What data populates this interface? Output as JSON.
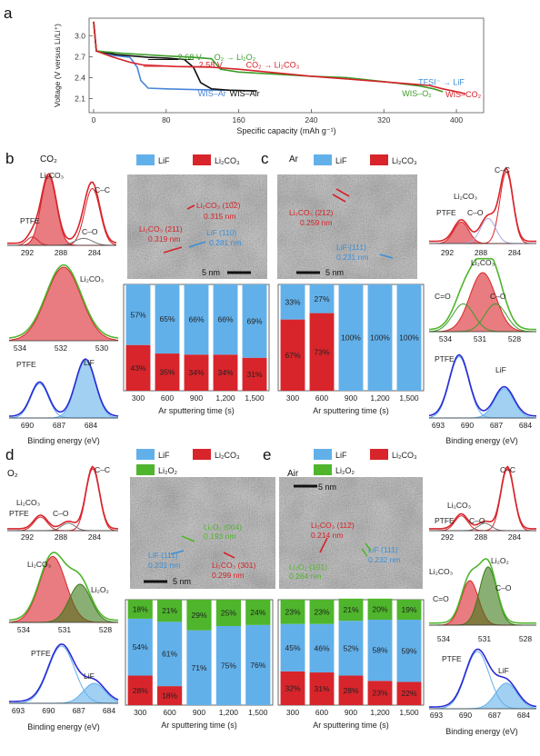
{
  "panel_labels": [
    "a",
    "b",
    "c",
    "d",
    "e"
  ],
  "colors": {
    "lif": "#62b0ea",
    "li2co3": "#d8252b",
    "li2o2": "#4fb52c",
    "curve_red": "#d62128",
    "curve_green": "#3c9c28",
    "curve_black": "#111111",
    "curve_blue": "#4a86d8",
    "ann_blue": "#3a8fd8"
  },
  "chart_data": [
    {
      "id": "a",
      "type": "line",
      "xlabel": "Specific capacity (mAh g⁻¹)",
      "ylabel": "Voltage (V versus Li/Li⁺)",
      "xlim": [
        -5,
        430
      ],
      "ylim": [
        1.9,
        3.25
      ],
      "xticks": [
        0,
        80,
        160,
        240,
        320,
        400
      ],
      "yticks": [
        2.1,
        2.4,
        2.7,
        3.0
      ],
      "series": [
        {
          "name": "WIS–Ar",
          "color": "#4a86d8",
          "points": [
            [
              0,
              3.2
            ],
            [
              3,
              2.78
            ],
            [
              20,
              2.72
            ],
            [
              40,
              2.69
            ],
            [
              48,
              2.55
            ],
            [
              52,
              2.36
            ],
            [
              60,
              2.25
            ],
            [
              80,
              2.24
            ],
            [
              110,
              2.23
            ],
            [
              145,
              2.22
            ]
          ]
        },
        {
          "name": "WIS–Air",
          "color": "#111111",
          "points": [
            [
              0,
              3.2
            ],
            [
              3,
              2.78
            ],
            [
              25,
              2.73
            ],
            [
              60,
              2.69
            ],
            [
              80,
              2.68
            ],
            [
              100,
              2.66
            ],
            [
              110,
              2.55
            ],
            [
              118,
              2.33
            ],
            [
              130,
              2.24
            ],
            [
              150,
              2.22
            ],
            [
              180,
              2.21
            ]
          ]
        },
        {
          "name": "WIS–O₂",
          "color": "#3c9c28",
          "points": [
            [
              0,
              3.2
            ],
            [
              3,
              2.78
            ],
            [
              30,
              2.75
            ],
            [
              80,
              2.71
            ],
            [
              110,
              2.69
            ],
            [
              130,
              2.67
            ],
            [
              140,
              2.52
            ],
            [
              160,
              2.48
            ],
            [
              200,
              2.45
            ],
            [
              240,
              2.42
            ],
            [
              280,
              2.4
            ],
            [
              330,
              2.33
            ],
            [
              360,
              2.28
            ],
            [
              375,
              2.24
            ],
            [
              385,
              2.2
            ]
          ]
        },
        {
          "name": "WIS–CO₂",
          "color": "#d62128",
          "points": [
            [
              0,
              3.2
            ],
            [
              3,
              2.78
            ],
            [
              20,
              2.7
            ],
            [
              40,
              2.62
            ],
            [
              55,
              2.58
            ],
            [
              90,
              2.56
            ],
            [
              130,
              2.55
            ],
            [
              160,
              2.52
            ],
            [
              200,
              2.47
            ],
            [
              240,
              2.42
            ],
            [
              280,
              2.38
            ],
            [
              320,
              2.34
            ],
            [
              350,
              2.31
            ],
            [
              370,
              2.29
            ],
            [
              385,
              2.24
            ],
            [
              400,
              2.2
            ],
            [
              410,
              2.17
            ]
          ]
        }
      ],
      "annotations": [
        {
          "text": "2.68 V",
          "color": "#3c9c28"
        },
        {
          "text": "O₂ → Li₂O₂",
          "color": "#3c9c28"
        },
        {
          "text": "2.58 V",
          "color": "#d62128"
        },
        {
          "text": "CO₂ → Li₂CO₃",
          "color": "#d62128"
        },
        {
          "text": "TFSI⁻ → LiF",
          "color": "#3a8fd8"
        }
      ]
    },
    {
      "id": "b-bar",
      "type": "bar",
      "stacked": true,
      "categories": [
        "300",
        "600",
        "900",
        "1,200",
        "1,500"
      ],
      "xlabel": "Ar sputtering time (s)",
      "series": [
        {
          "name": "Li₂CO₃",
          "values": [
            43,
            35,
            34,
            34,
            31
          ]
        },
        {
          "name": "LiF",
          "values": [
            57,
            65,
            66,
            66,
            69
          ]
        }
      ]
    },
    {
      "id": "c-bar",
      "type": "bar",
      "stacked": true,
      "categories": [
        "300",
        "600",
        "900",
        "1,200",
        "1,500"
      ],
      "xlabel": "Ar sputtering time (s)",
      "series": [
        {
          "name": "Li₂CO₃",
          "values": [
            67,
            73,
            0,
            0,
            0
          ]
        },
        {
          "name": "LiF",
          "values": [
            33,
            27,
            100,
            100,
            100
          ]
        }
      ]
    },
    {
      "id": "d-bar",
      "type": "bar",
      "stacked": true,
      "categories": [
        "300",
        "600",
        "900",
        "1,200",
        "1,500"
      ],
      "xlabel": "Ar sputtering time (s)",
      "series": [
        {
          "name": "Li₂CO₃",
          "values": [
            28,
            18,
            0,
            0,
            0
          ]
        },
        {
          "name": "LiF",
          "values": [
            54,
            61,
            71,
            75,
            76
          ]
        },
        {
          "name": "Li₂O₂",
          "values": [
            18,
            21,
            29,
            25,
            24
          ]
        }
      ]
    },
    {
      "id": "e-bar",
      "type": "bar",
      "stacked": true,
      "categories": [
        "300",
        "600",
        "900",
        "1,200",
        "1,500"
      ],
      "xlabel": "Ar sputtering time (s)",
      "series": [
        {
          "name": "Li₂CO₃",
          "values": [
            32,
            31,
            28,
            23,
            22
          ]
        },
        {
          "name": "LiF",
          "values": [
            45,
            46,
            52,
            58,
            59
          ]
        },
        {
          "name": "Li₂O₂",
          "values": [
            23,
            23,
            21,
            20,
            19
          ]
        }
      ]
    }
  ],
  "legends": {
    "lif": "LiF",
    "li2co3": "Li₂CO₃",
    "li2o2": "Li₂O₂"
  },
  "panels": {
    "b": {
      "gas": "CO₂",
      "xps_c1s": {
        "labels": [
          "Li₂CO₃",
          "C–C",
          "PTFE",
          "C–O"
        ],
        "ticks": [
          "292",
          "288",
          "284"
        ]
      },
      "xps_o1s": {
        "labels": [
          "Li₂CO₃"
        ],
        "ticks": [
          "534",
          "532",
          "530"
        ]
      },
      "xps_f1s": {
        "labels": [
          "PTFE",
          "LiF"
        ],
        "ticks": [
          "690",
          "687",
          "684"
        ],
        "xlabel": "Binding energy (eV)"
      },
      "tem": {
        "scale": "5 nm",
        "ann": [
          "Li₂CO₃ (10̅2)",
          "0.315 nm",
          "Li₂CO₃ (211)",
          "0.319 nm",
          "LiF (110)",
          "0.281 nm"
        ]
      }
    },
    "c": {
      "gas": "Ar",
      "xps_c1s": {
        "labels": [
          "C–C",
          "Li₂CO₃",
          "PTFE",
          "C–O"
        ],
        "ticks": [
          "292",
          "288",
          "284"
        ]
      },
      "xps_o1s": {
        "labels": [
          "Li₂CO₃",
          "C=O",
          "C–O"
        ],
        "ticks": [
          "534",
          "531",
          "528"
        ]
      },
      "xps_f1s": {
        "labels": [
          "PTFE",
          "LiF"
        ],
        "ticks": [
          "693",
          "690",
          "687",
          "684"
        ],
        "xlabel": "Binding energy (eV)"
      },
      "tem": {
        "scale": "5 nm",
        "ann": [
          "Li₂CO₃ (212)",
          "0.259 nm",
          "LiF (111)",
          "0.231 nm"
        ]
      }
    },
    "d": {
      "gas": "O₂",
      "xps_c1s": {
        "labels": [
          "C–C",
          "Li₂CO₃",
          "PTFE",
          "C–O"
        ],
        "ticks": [
          "292",
          "288",
          "284"
        ]
      },
      "xps_o1s": {
        "labels": [
          "Li₂CO₃",
          "Li₂O₂"
        ],
        "ticks": [
          "534",
          "531",
          "528"
        ]
      },
      "xps_f1s": {
        "labels": [
          "PTFE",
          "LiF"
        ],
        "ticks": [
          "693",
          "690",
          "687",
          "684"
        ],
        "xlabel": "Binding energy (eV)"
      },
      "tem": {
        "scale": "5 nm",
        "ann": [
          "Li₂O₂ (004)",
          "0.193 nm",
          "LiF (111)",
          "0.231 nm",
          "Li₂CO₃ (301)",
          "0.299 nm"
        ]
      }
    },
    "e": {
      "gas": "Air",
      "xps_c1s": {
        "labels": [
          "C–C",
          "Li₂CO₃",
          "PTFE",
          "C–O"
        ],
        "ticks": [
          "292",
          "288",
          "284"
        ]
      },
      "xps_o1s": {
        "labels": [
          "Li₂O₂",
          "Li₂CO₃",
          "C=O",
          "C–O"
        ],
        "ticks": [
          "534",
          "531",
          "528"
        ]
      },
      "xps_f1s": {
        "labels": [
          "PTFE",
          "LiF"
        ],
        "ticks": [
          "693",
          "690",
          "687",
          "684"
        ],
        "xlabel": "Binding energy (eV)"
      },
      "tem": {
        "scale": "5 nm",
        "ann": [
          "Li₂CO₃ (112)",
          "0.214 nm",
          "Li₂O₂ (101)",
          "0.264 nm",
          "LiF (111)",
          "0.232 nm"
        ]
      }
    }
  }
}
